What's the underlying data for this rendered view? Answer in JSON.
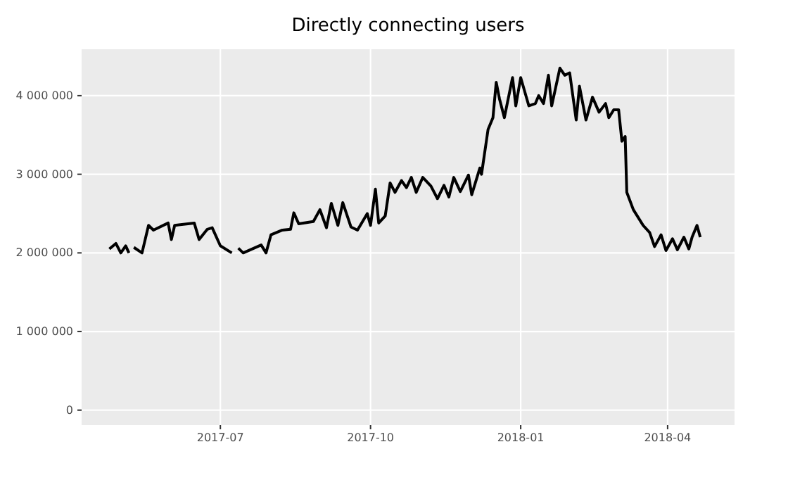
{
  "chart_data": {
    "type": "line",
    "title": "Directly connecting users",
    "x": [
      "2017-04-24",
      "2017-04-28",
      "2017-05-01",
      "2017-05-04",
      "2017-05-06",
      "2017-05-07",
      "2017-05-09",
      "2017-05-14",
      "2017-05-18",
      "2017-05-21",
      "2017-05-30",
      "2017-06-01",
      "2017-06-03",
      "2017-06-15",
      "2017-06-18",
      "2017-06-23",
      "2017-06-26",
      "2017-07-01",
      "2017-07-08",
      "2017-07-09",
      "2017-07-12",
      "2017-07-15",
      "2017-07-26",
      "2017-07-29",
      "2017-08-01",
      "2017-08-08",
      "2017-08-13",
      "2017-08-15",
      "2017-08-18",
      "2017-08-27",
      "2017-08-31",
      "2017-09-04",
      "2017-09-07",
      "2017-09-11",
      "2017-09-14",
      "2017-09-19",
      "2017-09-23",
      "2017-09-29",
      "2017-10-01",
      "2017-10-04",
      "2017-10-06",
      "2017-10-10",
      "2017-10-13",
      "2017-10-16",
      "2017-10-20",
      "2017-10-23",
      "2017-10-26",
      "2017-10-29",
      "2017-11-02",
      "2017-11-07",
      "2017-11-11",
      "2017-11-15",
      "2017-11-18",
      "2017-11-21",
      "2017-11-25",
      "2017-11-30",
      "2017-12-02",
      "2017-12-07",
      "2017-12-08",
      "2017-12-12",
      "2017-12-15",
      "2017-12-17",
      "2017-12-19",
      "2017-12-22",
      "2017-12-27",
      "2017-12-29",
      "2018-01-01",
      "2018-01-06",
      "2018-01-10",
      "2018-01-12",
      "2018-01-15",
      "2018-01-18",
      "2018-01-20",
      "2018-01-25",
      "2018-01-28",
      "2018-01-31",
      "2018-02-04",
      "2018-02-06",
      "2018-02-10",
      "2018-02-14",
      "2018-02-18",
      "2018-02-22",
      "2018-02-24",
      "2018-02-27",
      "2018-03-02",
      "2018-03-04",
      "2018-03-06",
      "2018-03-07",
      "2018-03-11",
      "2018-03-17",
      "2018-03-21",
      "2018-03-24",
      "2018-03-28",
      "2018-03-31",
      "2018-04-04",
      "2018-04-07",
      "2018-04-11",
      "2018-04-14",
      "2018-04-16",
      "2018-04-19",
      "2018-04-21"
    ],
    "series": [
      {
        "color": "#000000",
        "values": [
          2050000,
          2120000,
          2000000,
          2090000,
          2000000,
          null,
          2070000,
          2000000,
          2350000,
          2290000,
          2380000,
          2170000,
          2350000,
          2380000,
          2170000,
          2300000,
          2320000,
          2090000,
          2000000,
          null,
          2060000,
          2000000,
          2100000,
          2000000,
          2230000,
          2290000,
          2300000,
          2510000,
          2370000,
          2400000,
          2550000,
          2320000,
          2630000,
          2350000,
          2640000,
          2330000,
          2290000,
          2500000,
          2350000,
          2810000,
          2380000,
          2470000,
          2890000,
          2770000,
          2920000,
          2830000,
          2960000,
          2770000,
          2960000,
          2850000,
          2690000,
          2860000,
          2710000,
          2960000,
          2780000,
          2990000,
          2740000,
          3080000,
          3000000,
          3570000,
          3720000,
          4170000,
          3960000,
          3720000,
          4230000,
          3870000,
          4230000,
          3870000,
          3900000,
          4000000,
          3900000,
          4260000,
          3870000,
          4350000,
          4260000,
          4290000,
          3690000,
          4120000,
          3690000,
          3980000,
          3790000,
          3900000,
          3720000,
          3820000,
          3820000,
          3420000,
          3480000,
          2770000,
          2550000,
          2350000,
          2260000,
          2080000,
          2230000,
          2030000,
          2180000,
          2040000,
          2200000,
          2050000,
          2200000,
          2350000,
          2200000
        ]
      }
    ],
    "xlim": [
      "2017-04-07",
      "2018-05-12"
    ],
    "xticks": [
      {
        "value": "2017-07-01",
        "label": "2017-07"
      },
      {
        "value": "2017-10-01",
        "label": "2017-10"
      },
      {
        "value": "2018-01-01",
        "label": "2018-01"
      },
      {
        "value": "2018-04-01",
        "label": "2018-04"
      }
    ],
    "ylim": [
      -190000,
      4590000
    ],
    "yticks": [
      {
        "value": 0,
        "label": "0"
      },
      {
        "value": 1000000,
        "label": "1 000 000"
      },
      {
        "value": 2000000,
        "label": "2 000 000"
      },
      {
        "value": 3000000,
        "label": "3 000 000"
      },
      {
        "value": 4000000,
        "label": "4 000 000"
      }
    ],
    "grid": true,
    "line_style": "solid",
    "marker": "none"
  }
}
